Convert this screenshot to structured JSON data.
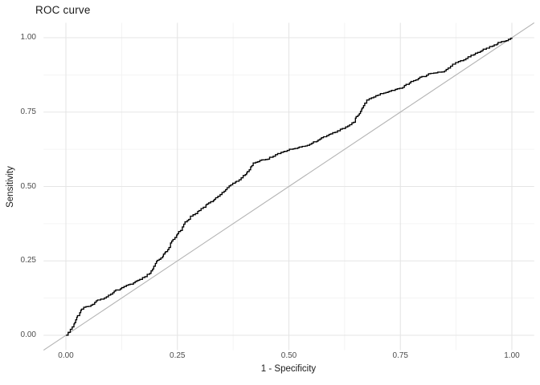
{
  "window": {
    "background": "#ffffff"
  },
  "chart_data": {
    "type": "line",
    "title": "ROC curve",
    "xlabel": "1 - Specificity",
    "ylabel": "Sensitivity",
    "xlim": [
      0,
      1
    ],
    "ylim": [
      0,
      1
    ],
    "x_ticks": {
      "labels": [
        "0.00",
        "0.25",
        "0.50",
        "0.75",
        "1.00"
      ],
      "values": [
        0,
        0.25,
        0.5,
        0.75,
        1
      ]
    },
    "y_ticks": {
      "labels": [
        "0.00",
        "0.25",
        "0.50",
        "0.75",
        "1.00"
      ],
      "values": [
        0,
        0.25,
        0.5,
        0.75,
        1
      ]
    },
    "grid": "major+minor",
    "legend": "none",
    "colors": {
      "roc_curve": "#000000",
      "reference_line": "#b3b3b3",
      "grid_major": "#e5e5e5",
      "grid_minor": "#f0f0f0",
      "tick_label": "#4d4d4d",
      "axis_title": "#1a1a1a",
      "plot_title": "#1a1a1a",
      "background": "#ffffff"
    },
    "series": [
      {
        "name": "ROC curve",
        "style": "step",
        "points": [
          [
            0.0,
            0.0
          ],
          [
            0.005,
            0.01
          ],
          [
            0.01,
            0.02
          ],
          [
            0.014,
            0.028
          ],
          [
            0.018,
            0.038
          ],
          [
            0.022,
            0.052
          ],
          [
            0.026,
            0.066
          ],
          [
            0.031,
            0.076
          ],
          [
            0.035,
            0.088
          ],
          [
            0.04,
            0.094
          ],
          [
            0.05,
            0.097
          ],
          [
            0.06,
            0.104
          ],
          [
            0.068,
            0.116
          ],
          [
            0.086,
            0.125
          ],
          [
            0.105,
            0.143
          ],
          [
            0.122,
            0.156
          ],
          [
            0.14,
            0.17
          ],
          [
            0.159,
            0.183
          ],
          [
            0.177,
            0.197
          ],
          [
            0.188,
            0.208
          ],
          [
            0.197,
            0.232
          ],
          [
            0.205,
            0.252
          ],
          [
            0.213,
            0.26
          ],
          [
            0.222,
            0.278
          ],
          [
            0.231,
            0.295
          ],
          [
            0.24,
            0.322
          ],
          [
            0.25,
            0.341
          ],
          [
            0.267,
            0.381
          ],
          [
            0.285,
            0.405
          ],
          [
            0.303,
            0.426
          ],
          [
            0.32,
            0.445
          ],
          [
            0.333,
            0.457
          ],
          [
            0.35,
            0.48
          ],
          [
            0.366,
            0.502
          ],
          [
            0.38,
            0.515
          ],
          [
            0.393,
            0.529
          ],
          [
            0.405,
            0.545
          ],
          [
            0.411,
            0.556
          ],
          [
            0.42,
            0.579
          ],
          [
            0.435,
            0.588
          ],
          [
            0.453,
            0.592
          ],
          [
            0.47,
            0.607
          ],
          [
            0.49,
            0.618
          ],
          [
            0.501,
            0.625
          ],
          [
            0.52,
            0.63
          ],
          [
            0.537,
            0.636
          ],
          [
            0.555,
            0.65
          ],
          [
            0.573,
            0.664
          ],
          [
            0.59,
            0.675
          ],
          [
            0.609,
            0.687
          ],
          [
            0.627,
            0.7
          ],
          [
            0.645,
            0.716
          ],
          [
            0.655,
            0.74
          ],
          [
            0.663,
            0.76
          ],
          [
            0.67,
            0.78
          ],
          [
            0.68,
            0.795
          ],
          [
            0.695,
            0.805
          ],
          [
            0.705,
            0.812
          ],
          [
            0.725,
            0.82
          ],
          [
            0.748,
            0.83
          ],
          [
            0.77,
            0.848
          ],
          [
            0.79,
            0.863
          ],
          [
            0.813,
            0.879
          ],
          [
            0.83,
            0.882
          ],
          [
            0.843,
            0.885
          ],
          [
            0.857,
            0.898
          ],
          [
            0.867,
            0.911
          ],
          [
            0.88,
            0.92
          ],
          [
            0.897,
            0.93
          ],
          [
            0.915,
            0.943
          ],
          [
            0.933,
            0.957
          ],
          [
            0.95,
            0.97
          ],
          [
            0.969,
            0.984
          ],
          [
            0.987,
            0.99
          ],
          [
            1.0,
            1.0
          ]
        ]
      },
      {
        "name": "chance diagonal",
        "style": "straight",
        "points": [
          [
            0,
            0
          ],
          [
            1,
            1
          ]
        ]
      }
    ]
  }
}
